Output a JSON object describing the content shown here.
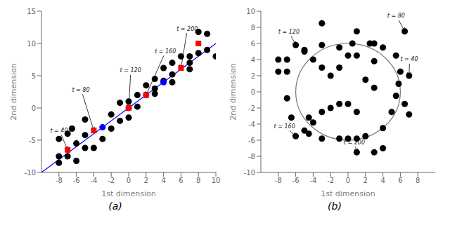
{
  "chart_data": [
    {
      "type": "scatter",
      "title": "(a)",
      "x_label": "1st dimension",
      "y_label": "2nd dimension",
      "xlim": [
        -10,
        10
      ],
      "ylim": [
        -10,
        15
      ],
      "xticks": [
        -8,
        -6,
        -4,
        -2,
        0,
        2,
        4,
        6,
        8,
        10
      ],
      "yticks": [
        -10,
        -5,
        0,
        5,
        10,
        15
      ],
      "grid": false,
      "series": [
        {
          "type": "line",
          "color": "blue",
          "x": [
            -10,
            10
          ],
          "values": [
            -10,
            10
          ]
        },
        {
          "type": "scatter",
          "marker": "circle",
          "color": "black",
          "x": [
            -8,
            -8,
            -7,
            -6,
            -7,
            -6,
            -5,
            -5,
            -4,
            -3,
            -2,
            -2,
            -1,
            0,
            0,
            1,
            1,
            2,
            3,
            3,
            4,
            5,
            4,
            5,
            6,
            7,
            7,
            8,
            9,
            8,
            9,
            10,
            -8,
            -6.5,
            -5,
            -1,
            3,
            5,
            7
          ],
          "values": [
            -4.8,
            -7.5,
            -7.5,
            -8.2,
            -4.0,
            -5.5,
            -4.2,
            -6.2,
            -6.2,
            -4.8,
            -3.2,
            -1.0,
            -2.0,
            -1.5,
            1.0,
            0.2,
            2.0,
            3.5,
            3.0,
            4.5,
            4.2,
            4.0,
            6.2,
            7.0,
            8.0,
            8.0,
            7.0,
            8.5,
            11.5,
            11.8,
            9.0,
            8.0,
            -8.5,
            -3.2,
            -1.8,
            0.8,
            2.2,
            5.2,
            6.0
          ]
        },
        {
          "type": "scatter",
          "marker": "circle",
          "color": "blue",
          "x": [
            -3,
            0,
            2,
            4
          ],
          "values": [
            -3,
            0,
            2,
            4
          ]
        },
        {
          "type": "scatter",
          "marker": "square",
          "color": "red",
          "x": [
            -7,
            -4,
            0,
            2,
            6,
            8
          ],
          "values": [
            -6.5,
            -3.5,
            0.0,
            2.0,
            6.2,
            10.0
          ]
        }
      ],
      "annotations": [
        {
          "text": "t = 40",
          "xy": [
            -7,
            -6.5
          ],
          "xytext": [
            -9.0,
            -3.8
          ]
        },
        {
          "text": "t = 80",
          "xy": [
            -4,
            -3.5
          ],
          "xytext": [
            -6.5,
            2.5
          ]
        },
        {
          "text": "t = 120",
          "xy": [
            0,
            0.0
          ],
          "xytext": [
            -1.0,
            5.5
          ]
        },
        {
          "text": "t = 160",
          "xy": [
            2,
            2.0
          ],
          "xytext": [
            3.0,
            8.5
          ]
        },
        {
          "text": "t = 200",
          "xy": [
            6,
            6.2
          ],
          "xytext": [
            5.5,
            12.0
          ]
        }
      ]
    },
    {
      "type": "scatter",
      "title": "(b)",
      "x_label": "1st dimension",
      "y_label": "2nd dimension",
      "xlim": [
        -10,
        10
      ],
      "ylim": [
        -10,
        10
      ],
      "xticks": [
        -8,
        -6,
        -4,
        -2,
        0,
        2,
        4,
        6,
        8
      ],
      "yticks": [
        -10,
        -8,
        -6,
        -4,
        -2,
        0,
        2,
        4,
        6,
        8,
        10
      ],
      "grid": false,
      "series": [
        {
          "type": "circle",
          "color": "#777777",
          "center": [
            0,
            0
          ],
          "radius": 6.0
        },
        {
          "type": "scatter",
          "marker": "circle",
          "color": "black",
          "x": [
            -6,
            -7,
            -7,
            -7,
            -6.5,
            -6,
            -5,
            -4.5,
            -4.5,
            -3,
            -1,
            0,
            1,
            2,
            4,
            5,
            5.5,
            5.8,
            6,
            5.5,
            4,
            2.5,
            0.5,
            -1,
            -3,
            -5,
            -4,
            -3,
            -2,
            -2,
            -3,
            -1,
            0,
            1,
            2,
            3,
            3,
            1,
            0,
            -1,
            6.5,
            7,
            6.5,
            7,
            -4,
            1,
            3,
            4,
            -8,
            -8,
            1,
            3,
            -5,
            -3
          ],
          "values": [
            5.8,
            4.0,
            2.5,
            -0.8,
            -3.2,
            -5.5,
            -4.8,
            -3.2,
            -5.2,
            -5.8,
            -5.8,
            -5.8,
            -5.8,
            -5.5,
            -4.5,
            -2.5,
            -0.5,
            1.0,
            2.5,
            4.5,
            5.5,
            6.0,
            6.0,
            5.5,
            5.8,
            5.0,
            4.0,
            3.0,
            2.0,
            -2.0,
            -2.5,
            -1.5,
            -1.5,
            -2.5,
            1.5,
            0.5,
            3.8,
            4.5,
            4.5,
            3.0,
            7.5,
            2.0,
            -1.5,
            -2.8,
            -3.8,
            -7.5,
            -7.5,
            -7.0,
            2.5,
            4.0,
            7.5,
            6.0,
            5.2,
            8.5
          ]
        }
      ],
      "annotations": [
        {
          "text": "t = 80",
          "xy": [
            6.5,
            7.5
          ],
          "xytext": [
            4.5,
            9.2
          ]
        },
        {
          "text": "t = 120",
          "xy": [
            -6,
            5.8
          ],
          "xytext": [
            -8.0,
            7.2
          ]
        },
        {
          "text": "t = 40",
          "xy": [
            7,
            2.0
          ],
          "xytext": [
            6.0,
            3.8
          ]
        },
        {
          "text": "t = 160",
          "xy": [
            -6,
            -5.5
          ],
          "xytext": [
            -8.5,
            -4.5
          ]
        },
        {
          "text": "t = 200",
          "xy": [
            1,
            -7.5
          ],
          "xytext": [
            -0.5,
            -6.5
          ]
        }
      ]
    }
  ]
}
